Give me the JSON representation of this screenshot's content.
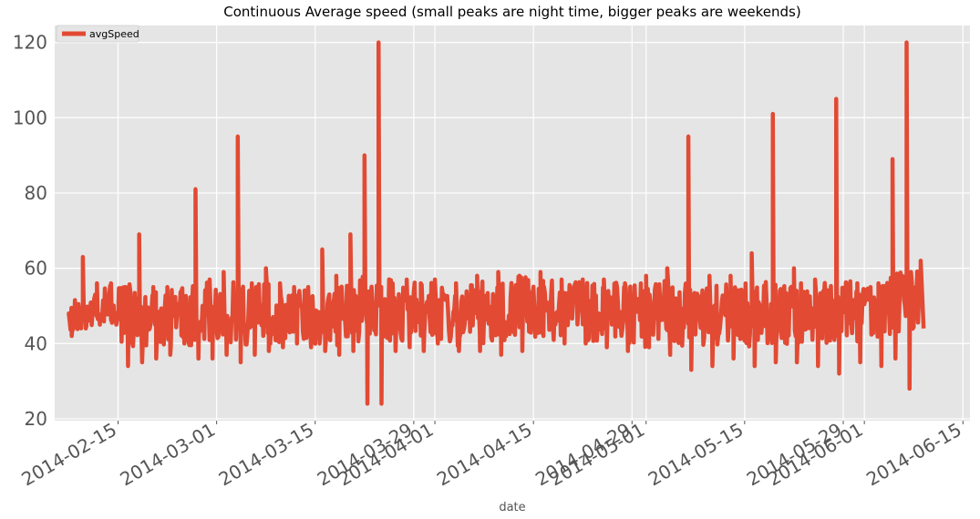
{
  "chart_data": {
    "type": "line",
    "title": "Continuous Average speed (small peaks are night time, bigger peaks are weekends)",
    "xlabel": "date",
    "ylabel": "",
    "xlim": [
      "2014-02-06",
      "2014-06-16"
    ],
    "ylim": [
      19.5,
      124.5
    ],
    "yticks": [
      20,
      40,
      60,
      80,
      100,
      120
    ],
    "xticks": [
      "2014-02-15",
      "2014-03-01",
      "2014-03-15",
      "2014-03-29",
      "2014-04-01",
      "2014-04-15",
      "2014-04-29",
      "2014-05-01",
      "2014-05-15",
      "2014-05-29",
      "2014-06-01",
      "2014-06-15"
    ],
    "grid": true,
    "legend": {
      "placement": "top-left"
    },
    "colors": {
      "series": "#E24A33",
      "background": "#E5E5E5",
      "grid": "#FFFFFF"
    },
    "series": [
      {
        "name": "avgSpeed",
        "baseline": [
          [
            "2014-02-08",
            45
          ],
          [
            "2014-02-10",
            47
          ],
          [
            "2014-02-12",
            49
          ],
          [
            "2014-02-14",
            48
          ],
          [
            "2014-02-16",
            49
          ],
          [
            "2014-02-18",
            47
          ],
          [
            "2014-02-20",
            49
          ],
          [
            "2014-02-22",
            48
          ],
          [
            "2014-02-24",
            49
          ],
          [
            "2014-02-26",
            48
          ],
          [
            "2014-02-28",
            49
          ],
          [
            "2014-03-02",
            48
          ],
          [
            "2014-03-04",
            49
          ],
          [
            "2014-03-06",
            48
          ],
          [
            "2014-03-08",
            49
          ],
          [
            "2014-03-10",
            48
          ],
          [
            "2014-03-12",
            49
          ],
          [
            "2014-03-14",
            48
          ],
          [
            "2014-03-16",
            49
          ],
          [
            "2014-03-18",
            48
          ],
          [
            "2014-03-20",
            49
          ],
          [
            "2014-03-22",
            50
          ],
          [
            "2014-03-24",
            50
          ],
          [
            "2014-03-26",
            49
          ],
          [
            "2014-03-28",
            49
          ],
          [
            "2014-03-30",
            48
          ],
          [
            "2014-04-01",
            49
          ],
          [
            "2014-04-04",
            48
          ],
          [
            "2014-04-07",
            49
          ],
          [
            "2014-04-10",
            48
          ],
          [
            "2014-04-13",
            50
          ],
          [
            "2014-04-16",
            49
          ],
          [
            "2014-04-19",
            50
          ],
          [
            "2014-04-22",
            49
          ],
          [
            "2014-04-25",
            50
          ],
          [
            "2014-04-28",
            49
          ],
          [
            "2014-05-01",
            48
          ],
          [
            "2014-05-04",
            49
          ],
          [
            "2014-05-07",
            48
          ],
          [
            "2014-05-10",
            48
          ],
          [
            "2014-05-13",
            49
          ],
          [
            "2014-05-16",
            48
          ],
          [
            "2014-05-19",
            49
          ],
          [
            "2014-05-22",
            48
          ],
          [
            "2014-05-25",
            49
          ],
          [
            "2014-05-28",
            49
          ],
          [
            "2014-05-31",
            49
          ],
          [
            "2014-06-03",
            50
          ],
          [
            "2014-06-05",
            51
          ],
          [
            "2014-06-07",
            52
          ],
          [
            "2014-06-09",
            52
          ]
        ],
        "upper_envelope": [
          [
            "2014-02-08",
            48
          ],
          [
            "2014-02-10",
            63
          ],
          [
            "2014-02-12",
            56
          ],
          [
            "2014-02-14",
            56
          ],
          [
            "2014-02-16",
            55
          ],
          [
            "2014-02-18",
            69
          ],
          [
            "2014-02-20",
            55
          ],
          [
            "2014-02-22",
            55
          ],
          [
            "2014-02-24",
            54
          ],
          [
            "2014-02-26",
            81
          ],
          [
            "2014-02-28",
            57
          ],
          [
            "2014-03-02",
            59
          ],
          [
            "2014-03-04",
            95
          ],
          [
            "2014-03-06",
            56
          ],
          [
            "2014-03-08",
            60
          ],
          [
            "2014-03-10",
            56
          ],
          [
            "2014-03-12",
            55
          ],
          [
            "2014-03-14",
            55
          ],
          [
            "2014-03-16",
            65
          ],
          [
            "2014-03-18",
            58
          ],
          [
            "2014-03-20",
            69
          ],
          [
            "2014-03-22",
            90
          ],
          [
            "2014-03-24",
            120
          ],
          [
            "2014-03-26",
            56
          ],
          [
            "2014-03-28",
            57
          ],
          [
            "2014-03-30",
            56
          ],
          [
            "2014-04-01",
            57
          ],
          [
            "2014-04-04",
            56
          ],
          [
            "2014-04-07",
            58
          ],
          [
            "2014-04-10",
            59
          ],
          [
            "2014-04-13",
            58
          ],
          [
            "2014-04-16",
            59
          ],
          [
            "2014-04-19",
            57
          ],
          [
            "2014-04-22",
            57
          ],
          [
            "2014-04-25",
            57
          ],
          [
            "2014-04-28",
            56
          ],
          [
            "2014-05-01",
            58
          ],
          [
            "2014-05-04",
            60
          ],
          [
            "2014-05-07",
            95
          ],
          [
            "2014-05-10",
            58
          ],
          [
            "2014-05-13",
            58
          ],
          [
            "2014-05-16",
            64
          ],
          [
            "2014-05-19",
            101
          ],
          [
            "2014-05-22",
            60
          ],
          [
            "2014-05-25",
            57
          ],
          [
            "2014-05-28",
            105
          ],
          [
            "2014-05-31",
            56
          ],
          [
            "2014-06-03",
            56
          ],
          [
            "2014-06-05",
            89
          ],
          [
            "2014-06-07",
            120
          ],
          [
            "2014-06-09",
            62
          ]
        ],
        "lower_envelope": [
          [
            "2014-02-08",
            42
          ],
          [
            "2014-02-10",
            44
          ],
          [
            "2014-02-12",
            45
          ],
          [
            "2014-02-14",
            46
          ],
          [
            "2014-02-16",
            34
          ],
          [
            "2014-02-18",
            35
          ],
          [
            "2014-02-20",
            36
          ],
          [
            "2014-02-22",
            37
          ],
          [
            "2014-02-24",
            40
          ],
          [
            "2014-02-26",
            36
          ],
          [
            "2014-02-28",
            36
          ],
          [
            "2014-03-02",
            37
          ],
          [
            "2014-03-04",
            35
          ],
          [
            "2014-03-06",
            37
          ],
          [
            "2014-03-08",
            38
          ],
          [
            "2014-03-10",
            39
          ],
          [
            "2014-03-12",
            40
          ],
          [
            "2014-03-14",
            39
          ],
          [
            "2014-03-16",
            38
          ],
          [
            "2014-03-18",
            37
          ],
          [
            "2014-03-20",
            38
          ],
          [
            "2014-03-22",
            24
          ],
          [
            "2014-03-24",
            24
          ],
          [
            "2014-03-26",
            38
          ],
          [
            "2014-03-28",
            39
          ],
          [
            "2014-03-30",
            38
          ],
          [
            "2014-04-01",
            40
          ],
          [
            "2014-04-04",
            38
          ],
          [
            "2014-04-07",
            38
          ],
          [
            "2014-04-10",
            37
          ],
          [
            "2014-04-13",
            38
          ],
          [
            "2014-04-16",
            42
          ],
          [
            "2014-04-19",
            40
          ],
          [
            "2014-04-22",
            40
          ],
          [
            "2014-04-25",
            39
          ],
          [
            "2014-04-28",
            38
          ],
          [
            "2014-05-01",
            39
          ],
          [
            "2014-05-04",
            37
          ],
          [
            "2014-05-07",
            33
          ],
          [
            "2014-05-10",
            34
          ],
          [
            "2014-05-13",
            36
          ],
          [
            "2014-05-16",
            34
          ],
          [
            "2014-05-19",
            35
          ],
          [
            "2014-05-22",
            35
          ],
          [
            "2014-05-25",
            34
          ],
          [
            "2014-05-28",
            32
          ],
          [
            "2014-05-31",
            35
          ],
          [
            "2014-06-03",
            34
          ],
          [
            "2014-06-05",
            36
          ],
          [
            "2014-06-07",
            28
          ],
          [
            "2014-06-09",
            44
          ]
        ]
      }
    ]
  }
}
